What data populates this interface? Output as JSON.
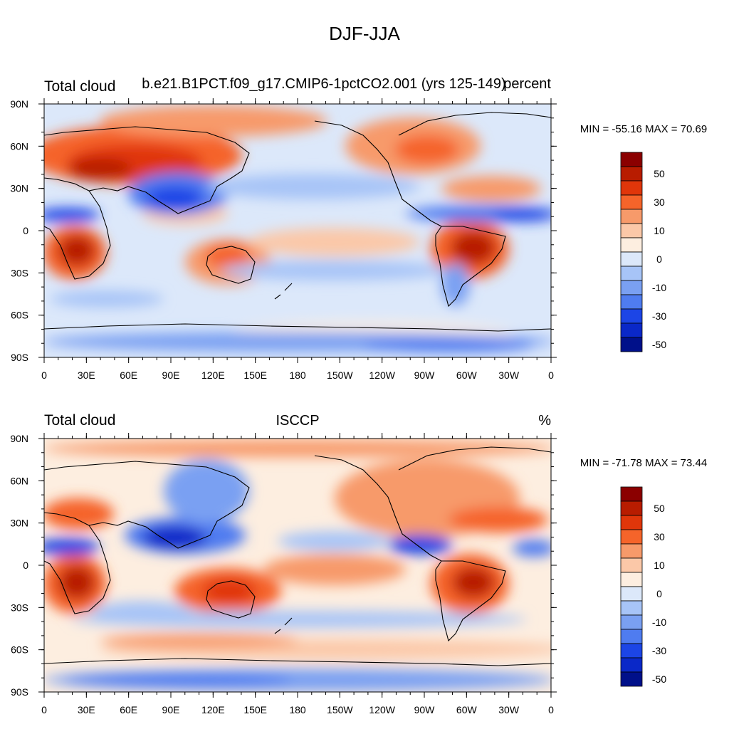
{
  "page_title": "DJF-JJA",
  "panels": [
    {
      "left_title": "Total cloud",
      "center_title": "b.e21.B1PCT.f09_g17.CMIP6-1pctCO2.001 (yrs 125-149)",
      "right_title": "percent",
      "minmax": "MIN = -55.16 MAX =  70.69",
      "min": -55.16,
      "max": 70.69
    },
    {
      "left_title": "Total cloud",
      "center_title": "ISCCP",
      "right_title": "%",
      "minmax": "MIN = -71.78 MAX =  73.44",
      "min": -71.78,
      "max": 73.44
    }
  ],
  "lat_labels": [
    "90N",
    "60N",
    "30N",
    "0",
    "30S",
    "60S",
    "90S"
  ],
  "lon_labels": [
    "0",
    "30E",
    "60E",
    "90E",
    "120E",
    "150E",
    "180",
    "150W",
    "120W",
    "90W",
    "60W",
    "30W",
    "0"
  ],
  "colorbar": {
    "labels": [
      "50",
      "30",
      "10",
      "0",
      "-10",
      "-30",
      "-50"
    ],
    "colors": [
      "#8b0000",
      "#b81c00",
      "#e0360a",
      "#f5642a",
      "#f79a6a",
      "#fbc8a8",
      "#fdeee0",
      "#dce8fa",
      "#a7c4f7",
      "#7aa0f2",
      "#4f7cf0",
      "#1c45e6",
      "#0a28c8",
      "#00108a"
    ]
  },
  "legend_colors": {
    "positive_strong": "#8b0000",
    "positive": "#e0360a",
    "neutral_warm": "#fdeee0",
    "neutral_cool": "#dce8fa",
    "negative": "#1c45e6",
    "negative_strong": "#00108a"
  }
}
